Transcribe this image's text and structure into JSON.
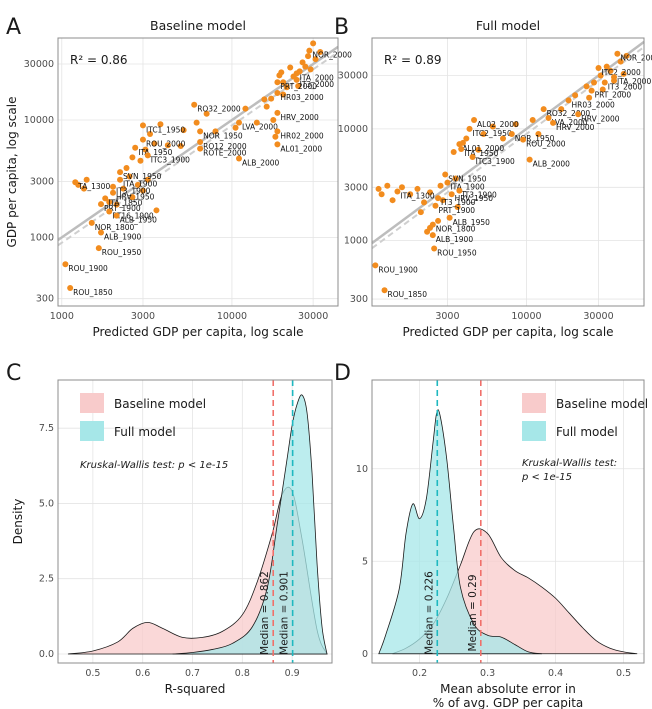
{
  "chart_data": [
    {
      "panel": "A",
      "type": "scatter",
      "title": "Baseline model",
      "xlabel": "Predicted GDP per capita, log scale",
      "ylabel": "GDP per capita, log scale",
      "log_x": true,
      "log_y": true,
      "xlim": [
        950,
        42000
      ],
      "ylim": [
        260,
        50000
      ],
      "xticks": [
        1000,
        3000,
        10000,
        30000
      ],
      "xtick_labels": [
        "1000",
        "3000",
        "10000",
        "30000"
      ],
      "yticks": [
        300,
        1000,
        3000,
        10000,
        30000
      ],
      "ytick_labels": [
        "300",
        "1000",
        "3000",
        "10000",
        "30000"
      ],
      "annotation": "R² = 0.86",
      "grid": true,
      "labeled_points": [
        {
          "label": "NOR_2000",
          "x": 28500,
          "y": 39000
        },
        {
          "label": "ITA_2000",
          "x": 24000,
          "y": 25000
        },
        {
          "label": "PRT_2000",
          "x": 18500,
          "y": 21000
        },
        {
          "label": "IT3_2000",
          "x": 24000,
          "y": 22000
        },
        {
          "label": "HR03_2000",
          "x": 18500,
          "y": 17000
        },
        {
          "label": "RO32_2000",
          "x": 6000,
          "y": 13500
        },
        {
          "label": "HRV_2000",
          "x": 18500,
          "y": 11500
        },
        {
          "label": "LVA_2000",
          "x": 11000,
          "y": 9500
        },
        {
          "label": "ITC1_1950",
          "x": 3000,
          "y": 9000
        },
        {
          "label": "NOR_1950",
          "x": 6500,
          "y": 8000
        },
        {
          "label": "HR02_2000",
          "x": 18500,
          "y": 8000
        },
        {
          "label": "ROU_2000",
          "x": 3000,
          "y": 6800
        },
        {
          "label": "RO12_2000",
          "x": 6500,
          "y": 6500
        },
        {
          "label": "ITA_1950",
          "x": 2700,
          "y": 5800
        },
        {
          "label": "ROTE_2000",
          "x": 6500,
          "y": 5700
        },
        {
          "label": "AL01_2000",
          "x": 18500,
          "y": 6200
        },
        {
          "label": "ITC3_1900",
          "x": 3200,
          "y": 5000
        },
        {
          "label": "ALB_2000",
          "x": 11000,
          "y": 4700
        },
        {
          "label": "TA_1300",
          "x": 1200,
          "y": 2950
        },
        {
          "label": "SVN_1950",
          "x": 2200,
          "y": 3600
        },
        {
          "label": "ITA_1900",
          "x": 2200,
          "y": 3100
        },
        {
          "label": "IT3_1900",
          "x": 2000,
          "y": 2700
        },
        {
          "label": "HRV_1950",
          "x": 2000,
          "y": 2400
        },
        {
          "label": "ITA_1850",
          "x": 1800,
          "y": 2150
        },
        {
          "label": "PRT_1900",
          "x": 1700,
          "y": 1920
        },
        {
          "label": "PT16_1900",
          "x": 1900,
          "y": 1660
        },
        {
          "label": "ALB_1950",
          "x": 2100,
          "y": 1530
        },
        {
          "label": "NOR_1800",
          "x": 1500,
          "y": 1330
        },
        {
          "label": "ALB_1900",
          "x": 1700,
          "y": 1100
        },
        {
          "label": "ROU_1950",
          "x": 1650,
          "y": 810
        },
        {
          "label": "ROU_1900",
          "x": 1050,
          "y": 590
        },
        {
          "label": "ROU_1850",
          "x": 1120,
          "y": 370
        }
      ],
      "other_points": [
        [
          1250,
          2800
        ],
        [
          1400,
          3100
        ],
        [
          1350,
          2600
        ],
        [
          2400,
          3900
        ],
        [
          2500,
          3300
        ],
        [
          2600,
          2200
        ],
        [
          2800,
          2800
        ],
        [
          3200,
          3100
        ],
        [
          3600,
          1700
        ],
        [
          3000,
          2500
        ],
        [
          2100,
          1900
        ],
        [
          1900,
          2000
        ],
        [
          2300,
          2600
        ],
        [
          3800,
          9200
        ],
        [
          3300,
          7600
        ],
        [
          3500,
          6300
        ],
        [
          4200,
          6100
        ],
        [
          2600,
          4800
        ],
        [
          2900,
          4500
        ],
        [
          3100,
          5600
        ],
        [
          5200,
          8200
        ],
        [
          6200,
          9500
        ],
        [
          7100,
          11300
        ],
        [
          5000,
          6000
        ],
        [
          8000,
          8000
        ],
        [
          10500,
          8600
        ],
        [
          12000,
          12500
        ],
        [
          14000,
          9500
        ],
        [
          16000,
          13000
        ],
        [
          17000,
          15200
        ],
        [
          20000,
          16500
        ],
        [
          20000,
          21000
        ],
        [
          19000,
          24000
        ],
        [
          21000,
          19000
        ],
        [
          22000,
          28000
        ],
        [
          23000,
          23500
        ],
        [
          25000,
          26000
        ],
        [
          26000,
          31000
        ],
        [
          28000,
          35000
        ],
        [
          30000,
          45000
        ],
        [
          31000,
          33000
        ],
        [
          29000,
          27000
        ],
        [
          33000,
          38000
        ],
        [
          17500,
          10000
        ],
        [
          18000,
          7200
        ],
        [
          15500,
          15000
        ],
        [
          19500,
          25500
        ],
        [
          24500,
          19500
        ],
        [
          27000,
          28500
        ]
      ]
    },
    {
      "panel": "B",
      "type": "scatter",
      "title": "Full model",
      "xlabel": "Predicted GDP per capita, log scale",
      "ylabel": "",
      "log_x": true,
      "log_y": true,
      "xlim": [
        950,
        60000
      ],
      "ylim": [
        260,
        65000
      ],
      "xticks": [
        3000,
        10000,
        30000
      ],
      "xtick_labels": [
        "3000",
        "10000",
        "30000"
      ],
      "yticks": [
        300,
        1000,
        3000,
        10000,
        30000
      ],
      "ytick_labels": [
        "300",
        "1000",
        "3000",
        "10000",
        "30000"
      ],
      "annotation": "R² = 0.89",
      "grid": true,
      "labeled_points": [
        {
          "label": "NOR_2000",
          "x": 40000,
          "y": 47000
        },
        {
          "label": "ITC2_2000",
          "x": 30000,
          "y": 35000
        },
        {
          "label": "ITA_2000",
          "x": 38000,
          "y": 29000
        },
        {
          "label": "IT3_2000",
          "x": 33000,
          "y": 26000
        },
        {
          "label": "PRT_2000",
          "x": 27000,
          "y": 22000
        },
        {
          "label": "HR03_2000",
          "x": 19000,
          "y": 18000
        },
        {
          "label": "RO32_2000",
          "x": 13000,
          "y": 15000
        },
        {
          "label": "HRV_2000",
          "x": 22000,
          "y": 13500
        },
        {
          "label": "LVA_2000",
          "x": 14000,
          "y": 12500
        },
        {
          "label": "AL02_2000",
          "x": 4500,
          "y": 12000
        },
        {
          "label": "HRV_2000",
          "x": 15000,
          "y": 11300
        },
        {
          "label": "ITC2_1950",
          "x": 4200,
          "y": 10000
        },
        {
          "label": "NOR_1950",
          "x": 8000,
          "y": 9000
        },
        {
          "label": "ROU_2000",
          "x": 9500,
          "y": 8000
        },
        {
          "label": "AL01_2000",
          "x": 3600,
          "y": 7300
        },
        {
          "label": "ITA_1950",
          "x": 3700,
          "y": 6600
        },
        {
          "label": "ITC3_1900",
          "x": 4400,
          "y": 5600
        },
        {
          "label": "ALB_2000",
          "x": 10500,
          "y": 5300
        },
        {
          "label": "SVN_1950",
          "x": 2900,
          "y": 3900
        },
        {
          "label": "ITA_1300",
          "x": 1400,
          "y": 2750
        },
        {
          "label": "ITA_1900",
          "x": 3000,
          "y": 3300
        },
        {
          "label": "IT3_1900",
          "x": 3600,
          "y": 2800
        },
        {
          "label": "HRV_1950",
          "x": 3200,
          "y": 2600
        },
        {
          "label": "IT3_1900",
          "x": 2600,
          "y": 2400
        },
        {
          "label": "PRT_1900",
          "x": 2500,
          "y": 2050
        },
        {
          "label": "ALB_1950",
          "x": 3100,
          "y": 1600
        },
        {
          "label": "NOR_1800",
          "x": 2400,
          "y": 1390
        },
        {
          "label": "ALB_1900",
          "x": 2400,
          "y": 1120
        },
        {
          "label": "ROU_1950",
          "x": 2450,
          "y": 850
        },
        {
          "label": "ROU_1900",
          "x": 1000,
          "y": 600
        },
        {
          "label": "ROU_1850",
          "x": 1150,
          "y": 360
        }
      ],
      "other_points": [
        [
          1050,
          2900
        ],
        [
          1100,
          2600
        ],
        [
          1200,
          3100
        ],
        [
          1300,
          2300
        ],
        [
          1500,
          3000
        ],
        [
          1700,
          2600
        ],
        [
          1900,
          2900
        ],
        [
          2100,
          2200
        ],
        [
          2300,
          2700
        ],
        [
          2000,
          1800
        ],
        [
          2700,
          3100
        ],
        [
          2800,
          2300
        ],
        [
          3400,
          3600
        ],
        [
          3500,
          2000
        ],
        [
          2600,
          1500
        ],
        [
          2200,
          1200
        ],
        [
          2300,
          1300
        ],
        [
          3800,
          7500
        ],
        [
          3300,
          6200
        ],
        [
          4000,
          8200
        ],
        [
          4800,
          6500
        ],
        [
          5200,
          9000
        ],
        [
          6000,
          10500
        ],
        [
          7000,
          8200
        ],
        [
          8500,
          11000
        ],
        [
          11000,
          12000
        ],
        [
          12000,
          9000
        ],
        [
          17000,
          15000
        ],
        [
          21000,
          20000
        ],
        [
          25000,
          24000
        ],
        [
          28000,
          26000
        ],
        [
          31000,
          30000
        ],
        [
          34000,
          36000
        ],
        [
          36000,
          33000
        ],
        [
          42000,
          40000
        ],
        [
          44000,
          31000
        ],
        [
          46000,
          45000
        ],
        [
          38000,
          27000
        ],
        [
          32000,
          22500
        ],
        [
          26000,
          19000
        ]
      ]
    },
    {
      "panel": "C",
      "type": "area",
      "xlabel": "R-squared",
      "ylabel": "Density",
      "xlim": [
        0.43,
        0.98
      ],
      "ylim": [
        -0.3,
        9.1
      ],
      "xticks": [
        0.5,
        0.6,
        0.7,
        0.8,
        0.9
      ],
      "xtick_labels": [
        "0.5",
        "0.6",
        "0.7",
        "0.8",
        "0.9"
      ],
      "yticks": [
        0,
        2.5,
        5,
        7.5
      ],
      "ytick_labels": [
        "0.0",
        "2.5",
        "5.0",
        "7.5"
      ],
      "legend": [
        "Baseline model",
        "Full model"
      ],
      "legend_position": "top-left",
      "note": "Kruskal-Wallis test: p < 1e-15",
      "medians": [
        {
          "series": "Baseline model",
          "value": 0.862,
          "label": "Median = 0.862"
        },
        {
          "series": "Full model",
          "value": 0.901,
          "label": "Median = 0.901"
        }
      ],
      "series": [
        {
          "name": "Baseline model",
          "x": [
            0.45,
            0.5,
            0.55,
            0.58,
            0.61,
            0.64,
            0.68,
            0.72,
            0.76,
            0.8,
            0.83,
            0.86,
            0.88,
            0.9,
            0.92,
            0.95,
            0.97
          ],
          "y": [
            0,
            0.1,
            0.4,
            0.85,
            1.05,
            0.85,
            0.55,
            0.55,
            0.75,
            1.3,
            2.4,
            4.0,
            5.3,
            5.4,
            3.8,
            0.8,
            0
          ]
        },
        {
          "name": "Full model",
          "x": [
            0.66,
            0.7,
            0.74,
            0.78,
            0.82,
            0.85,
            0.87,
            0.89,
            0.9,
            0.91,
            0.92,
            0.93,
            0.94,
            0.95,
            0.96,
            0.97
          ],
          "y": [
            0,
            0.05,
            0.15,
            0.35,
            0.9,
            2.2,
            4.3,
            6.5,
            7.6,
            8.3,
            8.6,
            8.0,
            6.0,
            3.0,
            0.9,
            0
          ]
        }
      ]
    },
    {
      "panel": "D",
      "type": "area",
      "xlabel": "Mean absolute error in % of avg. GDP per capita",
      "xlabel_lines": [
        "Mean absolute error in",
        "% of avg. GDP per capita"
      ],
      "ylabel": "",
      "xlim": [
        0.13,
        0.53
      ],
      "ylim": [
        -0.5,
        14.8
      ],
      "xticks": [
        0.2,
        0.3,
        0.4,
        0.5
      ],
      "xtick_labels": [
        "0.2",
        "0.3",
        "0.4",
        "0.5"
      ],
      "yticks": [
        0,
        5,
        10
      ],
      "ytick_labels": [
        "0",
        "5",
        "10"
      ],
      "legend": [
        "Baseline model",
        "Full model"
      ],
      "legend_position": "top-right",
      "note_lines": [
        "Kruskal-Wallis test:",
        "p < 1e-15"
      ],
      "medians": [
        {
          "series": "Full model",
          "value": 0.226,
          "label": "Median = 0.226"
        },
        {
          "series": "Baseline model",
          "value": 0.29,
          "label": "Median = 0.29"
        }
      ],
      "series": [
        {
          "name": "Baseline model",
          "x": [
            0.16,
            0.18,
            0.2,
            0.22,
            0.24,
            0.26,
            0.28,
            0.3,
            0.32,
            0.34,
            0.36,
            0.38,
            0.4,
            0.42,
            0.44,
            0.46,
            0.48,
            0.5,
            0.52
          ],
          "y": [
            0,
            0.3,
            0.8,
            1.6,
            3.0,
            4.8,
            6.6,
            6.5,
            5.2,
            4.5,
            4.1,
            3.6,
            3.0,
            2.2,
            1.4,
            0.7,
            0.3,
            0.1,
            0
          ]
        },
        {
          "name": "Full model",
          "x": [
            0.14,
            0.15,
            0.17,
            0.18,
            0.19,
            0.2,
            0.21,
            0.22,
            0.225,
            0.23,
            0.24,
            0.25,
            0.26,
            0.28,
            0.3,
            0.32,
            0.34,
            0.36,
            0.38
          ],
          "y": [
            0,
            1.0,
            3.5,
            6.5,
            8.1,
            7.3,
            8.4,
            11.5,
            13.0,
            12.9,
            10.5,
            6.8,
            3.6,
            1.6,
            1.0,
            0.9,
            0.5,
            0.1,
            0
          ]
        }
      ]
    }
  ],
  "panel_labels": [
    "A",
    "B",
    "C",
    "D"
  ],
  "colors": {
    "points": "#F28C1E",
    "baseline_fill": "#F8CBCB",
    "full_fill": "#A6E7E8",
    "baseline_line": "#F0706A",
    "full_line": "#1FB8C0",
    "fit_line": "#9E9E9E",
    "grid": "#E4E4E4"
  }
}
